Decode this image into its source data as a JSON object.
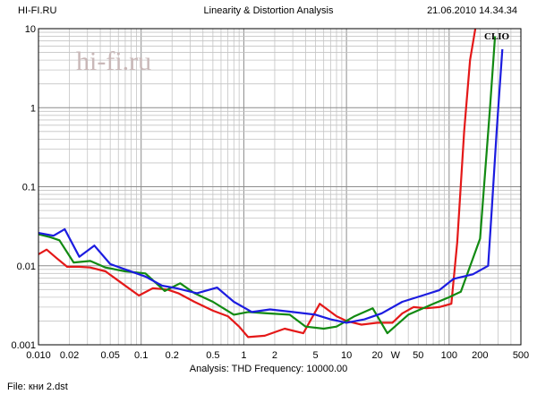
{
  "header": {
    "left": "HI-FI.RU",
    "center": "Linearity & Distortion Analysis",
    "right": "21.06.2010 14.34.34"
  },
  "watermark": "hi-fi.ru",
  "brand": "CLIO",
  "footer": {
    "analysis": "Analysis: THD   Frequency: 10000.00",
    "file": "File: кни 2.dst"
  },
  "chart_data": {
    "type": "line",
    "title": "Linearity & Distortion Analysis",
    "x_scale": "log",
    "y_scale": "log",
    "xlim": [
      0.01,
      500
    ],
    "ylim": [
      0.001,
      10
    ],
    "x_ticks": [
      {
        "v": 0.01,
        "label": "0.010"
      },
      {
        "v": 0.02,
        "label": "0.02"
      },
      {
        "v": 0.05,
        "label": "0.05"
      },
      {
        "v": 0.1,
        "label": "0.1"
      },
      {
        "v": 0.2,
        "label": "0.2"
      },
      {
        "v": 0.5,
        "label": "0.5"
      },
      {
        "v": 1,
        "label": "1"
      },
      {
        "v": 2,
        "label": "2"
      },
      {
        "v": 5,
        "label": "5"
      },
      {
        "v": 10,
        "label": "10"
      },
      {
        "v": 20,
        "label": "20"
      },
      {
        "v": 30,
        "label": "W"
      },
      {
        "v": 50,
        "label": "50"
      },
      {
        "v": 100,
        "label": "100"
      },
      {
        "v": 200,
        "label": "200"
      },
      {
        "v": 500,
        "label": "500"
      }
    ],
    "y_ticks": [
      {
        "v": 10,
        "label": "10"
      },
      {
        "v": 1,
        "label": "1"
      },
      {
        "v": 0.1,
        "label": "0.1"
      },
      {
        "v": 0.01,
        "label": "0.01"
      },
      {
        "v": 0.001,
        "label": "0.001"
      }
    ],
    "grid": true,
    "series": [
      {
        "color": "#e41818",
        "points": [
          [
            0.01,
            0.014
          ],
          [
            0.012,
            0.016
          ],
          [
            0.015,
            0.0125
          ],
          [
            0.019,
            0.0097
          ],
          [
            0.025,
            0.0097
          ],
          [
            0.032,
            0.0095
          ],
          [
            0.045,
            0.0085
          ],
          [
            0.065,
            0.006
          ],
          [
            0.095,
            0.0042
          ],
          [
            0.13,
            0.0052
          ],
          [
            0.18,
            0.005
          ],
          [
            0.23,
            0.0045
          ],
          [
            0.33,
            0.0035
          ],
          [
            0.5,
            0.0027
          ],
          [
            0.7,
            0.0023
          ],
          [
            0.9,
            0.0017
          ],
          [
            1.1,
            0.00125
          ],
          [
            1.6,
            0.0013
          ],
          [
            2.5,
            0.0016
          ],
          [
            3.8,
            0.0014
          ],
          [
            5.5,
            0.0033
          ],
          [
            8,
            0.0023
          ],
          [
            10,
            0.002
          ],
          [
            14,
            0.0018
          ],
          [
            20,
            0.0019
          ],
          [
            28,
            0.0019
          ],
          [
            35,
            0.0025
          ],
          [
            45,
            0.003
          ],
          [
            60,
            0.0029
          ],
          [
            80,
            0.003
          ],
          [
            105,
            0.0033
          ],
          [
            120,
            0.02
          ],
          [
            140,
            0.5
          ],
          [
            160,
            4.0
          ],
          [
            180,
            10.0
          ]
        ]
      },
      {
        "color": "#128a12",
        "points": [
          [
            0.01,
            0.025
          ],
          [
            0.013,
            0.023
          ],
          [
            0.016,
            0.021
          ],
          [
            0.022,
            0.011
          ],
          [
            0.032,
            0.0115
          ],
          [
            0.045,
            0.0095
          ],
          [
            0.07,
            0.0085
          ],
          [
            0.11,
            0.008
          ],
          [
            0.17,
            0.0048
          ],
          [
            0.24,
            0.006
          ],
          [
            0.33,
            0.0045
          ],
          [
            0.5,
            0.0035
          ],
          [
            0.8,
            0.0024
          ],
          [
            1.1,
            0.0026
          ],
          [
            1.7,
            0.0025
          ],
          [
            2.8,
            0.0024
          ],
          [
            4,
            0.0017
          ],
          [
            6,
            0.0016
          ],
          [
            8,
            0.0017
          ],
          [
            12,
            0.0023
          ],
          [
            18,
            0.0029
          ],
          [
            25,
            0.0014
          ],
          [
            40,
            0.0024
          ],
          [
            70,
            0.0033
          ],
          [
            100,
            0.004
          ],
          [
            130,
            0.0047
          ],
          [
            200,
            0.022
          ],
          [
            250,
            1.0
          ],
          [
            280,
            8.0
          ]
        ]
      },
      {
        "color": "#1c1ce0",
        "points": [
          [
            0.01,
            0.026
          ],
          [
            0.014,
            0.024
          ],
          [
            0.018,
            0.029
          ],
          [
            0.025,
            0.013
          ],
          [
            0.035,
            0.018
          ],
          [
            0.05,
            0.0105
          ],
          [
            0.07,
            0.009
          ],
          [
            0.11,
            0.0073
          ],
          [
            0.16,
            0.0056
          ],
          [
            0.22,
            0.0052
          ],
          [
            0.35,
            0.0045
          ],
          [
            0.55,
            0.0053
          ],
          [
            0.8,
            0.0035
          ],
          [
            1.2,
            0.0026
          ],
          [
            1.8,
            0.0028
          ],
          [
            3,
            0.0026
          ],
          [
            5,
            0.0024
          ],
          [
            7,
            0.0021
          ],
          [
            10,
            0.0019
          ],
          [
            15,
            0.0021
          ],
          [
            22,
            0.0025
          ],
          [
            35,
            0.0035
          ],
          [
            55,
            0.0042
          ],
          [
            80,
            0.0049
          ],
          [
            110,
            0.0068
          ],
          [
            170,
            0.0078
          ],
          [
            240,
            0.01
          ],
          [
            260,
            0.05
          ],
          [
            290,
            0.5
          ],
          [
            330,
            5.5
          ]
        ]
      }
    ]
  }
}
